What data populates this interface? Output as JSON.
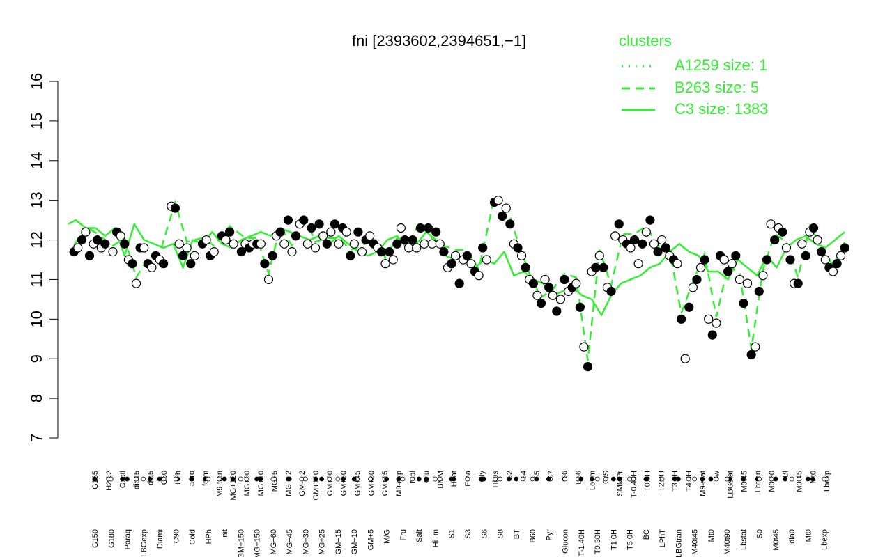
{
  "chart_data": {
    "type": "line",
    "title": "fni [2393602,2394651,−1]",
    "xlabel": "",
    "ylabel": "",
    "ylim": [
      7,
      16
    ],
    "yticks": [
      7,
      8,
      9,
      10,
      11,
      12,
      13,
      14,
      15,
      16
    ],
    "grid": false,
    "legend": {
      "title": "clusters",
      "placement": "top-right",
      "color": "#33ee33",
      "entries": [
        {
          "label": "A1259 size: 1",
          "style": "dotted"
        },
        {
          "label": "B263 size: 5",
          "style": "dashed"
        },
        {
          "label": "C3 size: 1383",
          "style": "solid"
        }
      ]
    },
    "x_tick_labels_lower": [
      "G150",
      "G180",
      "Paraq",
      "LBGexp",
      "Diami",
      "C90",
      "Cold",
      "HPh",
      "nit",
      "GM+150",
      "MG+150",
      "MG+60",
      "MG+45",
      "MG+30",
      "MG+25",
      "GM+15",
      "GM+10",
      "GM+5",
      "M/G",
      "Fru",
      "Salt",
      "HiTm",
      "S1",
      "S3",
      "S6",
      "S8",
      "BT",
      "B60",
      "Pyr",
      "Glucon",
      "T-1.40H",
      "T0.30H",
      "T1.0H",
      "T5.0H",
      "BC",
      "LPhT",
      "LBGtran",
      "M40t45",
      "Mt0",
      "M40t90",
      "Lbstat",
      "S0",
      "M0t45",
      "dia0",
      "Mt0",
      "Lbexp"
    ],
    "x_tick_labels_upper": [
      "G135",
      "H2O2",
      "Oxctl",
      "dia15",
      "dia5",
      "C30",
      "LPh",
      "aero",
      "ferm",
      "M9-tran",
      "MG+120",
      "MG+90",
      "MG+10",
      "MG+5",
      "MG-0.2",
      "GM-0.2",
      "GM+120",
      "GM+90",
      "GM+60",
      "GM+45",
      "GM+30",
      "GM+25",
      "M9-exp",
      "Mal",
      "Glu",
      "BMM",
      "Heat",
      "Etha",
      "Gly",
      "HiOs",
      "S2",
      "S4",
      "S5",
      "S7",
      "S6",
      "B36",
      "LoTm",
      "G/S",
      "SMMPr",
      "T-0.40H",
      "T0.0H",
      "T2.0H",
      "T3.0H",
      "T4.0H",
      "M9-stat",
      "Sw",
      "LBGstat",
      "M0t45",
      "Lbtran",
      "M0t90",
      "Bl",
      "M0t45",
      "Mt0",
      "Lbexp"
    ],
    "series": [
      {
        "name": "C3 size: 1383",
        "style": "solid",
        "x": [
          1,
          5,
          10,
          15,
          20,
          25,
          30,
          35,
          40,
          45,
          50,
          55,
          60,
          65,
          70,
          75,
          80,
          85,
          90,
          95,
          100,
          105,
          110,
          115,
          120,
          125,
          130,
          135,
          140,
          145,
          150,
          155,
          160,
          165,
          170,
          175,
          180,
          185,
          190,
          195,
          200,
          205,
          210,
          215,
          220,
          225,
          230,
          235,
          240,
          245,
          250,
          255,
          260,
          265,
          270,
          275,
          280,
          285,
          290,
          295,
          300,
          305,
          310,
          315,
          320,
          325,
          330,
          335,
          340,
          345,
          350,
          355,
          360,
          365,
          370,
          375,
          380,
          385,
          390,
          395,
          400
        ],
        "values": [
          12.4,
          12.5,
          12.3,
          12.3,
          12.1,
          12.3,
          11.6,
          12.4,
          12.0,
          11.9,
          11.8,
          11.9,
          11.3,
          12.0,
          11.9,
          12.2,
          11.9,
          11.8,
          12.0,
          12.1,
          12.2,
          12.1,
          12.3,
          12.2,
          12.1,
          12.0,
          12.1,
          11.9,
          12.1,
          11.9,
          11.7,
          11.6,
          11.7,
          12.0,
          12.1,
          11.8,
          11.9,
          12.2,
          12.0,
          11.6,
          11.5,
          11.6,
          11.3,
          11.5,
          11.4,
          11.7,
          11.1,
          11.2,
          11.0,
          10.9,
          10.6,
          10.7,
          10.8,
          10.6,
          10.5,
          10.1,
          10.6,
          10.9,
          11.0,
          11.1,
          11.3,
          11.4,
          11.7,
          11.9,
          11.7,
          11.6,
          11.2,
          11.2,
          11.0,
          11.5,
          11.3,
          11.1,
          11.6,
          11.3,
          11.8,
          12.0,
          12.1,
          11.9,
          11.8,
          12.0,
          12.2
        ]
      }
    ],
    "points_note": "",
    "points": [
      {
        "x": 4,
        "y": 11.7
      },
      {
        "x": 6,
        "y": 11.8
      },
      {
        "x": 8,
        "y": 12.0
      },
      {
        "x": 10,
        "y": 12.2
      },
      {
        "x": 12,
        "y": 11.6
      },
      {
        "x": 14,
        "y": 11.9
      },
      {
        "x": 16,
        "y": 12.0
      },
      {
        "x": 18,
        "y": 11.8
      },
      {
        "x": 20,
        "y": 11.9
      },
      {
        "x": 24,
        "y": 11.7
      },
      {
        "x": 26,
        "y": 12.2
      },
      {
        "x": 28,
        "y": 12.1
      },
      {
        "x": 30,
        "y": 11.9
      },
      {
        "x": 32,
        "y": 11.5
      },
      {
        "x": 34,
        "y": 11.4
      },
      {
        "x": 36,
        "y": 10.9
      },
      {
        "x": 38,
        "y": 11.8
      },
      {
        "x": 40,
        "y": 11.8
      },
      {
        "x": 42,
        "y": 11.4
      },
      {
        "x": 44,
        "y": 11.3
      },
      {
        "x": 46,
        "y": 11.6
      },
      {
        "x": 48,
        "y": 11.5
      },
      {
        "x": 50,
        "y": 11.4
      },
      {
        "x": 54,
        "y": 12.85
      },
      {
        "x": 56,
        "y": 12.8
      },
      {
        "x": 58,
        "y": 11.9
      },
      {
        "x": 60,
        "y": 11.6
      },
      {
        "x": 62,
        "y": 11.8
      },
      {
        "x": 64,
        "y": 11.4
      },
      {
        "x": 66,
        "y": 11.6
      },
      {
        "x": 70,
        "y": 11.9
      },
      {
        "x": 72,
        "y": 12.0
      },
      {
        "x": 74,
        "y": 11.6
      },
      {
        "x": 76,
        "y": 11.7
      },
      {
        "x": 80,
        "y": 12.1
      },
      {
        "x": 82,
        "y": 12.0
      },
      {
        "x": 84,
        "y": 12.2
      },
      {
        "x": 86,
        "y": 11.9
      },
      {
        "x": 90,
        "y": 11.7
      },
      {
        "x": 92,
        "y": 11.9
      },
      {
        "x": 94,
        "y": 11.8
      },
      {
        "x": 96,
        "y": 11.9
      },
      {
        "x": 98,
        "y": 11.9
      },
      {
        "x": 100,
        "y": 11.9
      },
      {
        "x": 102,
        "y": 11.4
      },
      {
        "x": 104,
        "y": 11.0
      },
      {
        "x": 106,
        "y": 11.6
      },
      {
        "x": 108,
        "y": 12.1
      },
      {
        "x": 110,
        "y": 12.2
      },
      {
        "x": 112,
        "y": 11.9
      },
      {
        "x": 114,
        "y": 12.5
      },
      {
        "x": 116,
        "y": 11.7
      },
      {
        "x": 118,
        "y": 12.1
      },
      {
        "x": 120,
        "y": 12.4
      },
      {
        "x": 122,
        "y": 12.5
      },
      {
        "x": 124,
        "y": 11.9
      },
      {
        "x": 126,
        "y": 12.3
      },
      {
        "x": 128,
        "y": 11.8
      },
      {
        "x": 130,
        "y": 12.4
      },
      {
        "x": 132,
        "y": 12.1
      },
      {
        "x": 134,
        "y": 11.9
      },
      {
        "x": 136,
        "y": 12.2
      },
      {
        "x": 138,
        "y": 12.4
      },
      {
        "x": 140,
        "y": 11.9
      },
      {
        "x": 142,
        "y": 12.3
      },
      {
        "x": 144,
        "y": 12.2
      },
      {
        "x": 146,
        "y": 11.6
      },
      {
        "x": 148,
        "y": 11.9
      },
      {
        "x": 150,
        "y": 12.2
      },
      {
        "x": 152,
        "y": 11.7
      },
      {
        "x": 154,
        "y": 12.0
      },
      {
        "x": 156,
        "y": 12.1
      },
      {
        "x": 158,
        "y": 11.9
      },
      {
        "x": 160,
        "y": 11.8
      },
      {
        "x": 162,
        "y": 11.7
      },
      {
        "x": 164,
        "y": 11.4
      },
      {
        "x": 166,
        "y": 11.7
      },
      {
        "x": 168,
        "y": 11.5
      },
      {
        "x": 170,
        "y": 11.9
      },
      {
        "x": 172,
        "y": 12.3
      },
      {
        "x": 174,
        "y": 12.0
      },
      {
        "x": 176,
        "y": 11.8
      },
      {
        "x": 178,
        "y": 12.0
      },
      {
        "x": 180,
        "y": 11.8
      },
      {
        "x": 182,
        "y": 12.3
      },
      {
        "x": 184,
        "y": 11.9
      },
      {
        "x": 186,
        "y": 12.3
      },
      {
        "x": 188,
        "y": 11.9
      },
      {
        "x": 190,
        "y": 12.2
      },
      {
        "x": 192,
        "y": 11.9
      },
      {
        "x": 194,
        "y": 11.7
      },
      {
        "x": 196,
        "y": 11.3
      },
      {
        "x": 198,
        "y": 11.4
      },
      {
        "x": 200,
        "y": 11.6
      },
      {
        "x": 202,
        "y": 10.9
      },
      {
        "x": 204,
        "y": 11.5
      },
      {
        "x": 206,
        "y": 11.6
      },
      {
        "x": 208,
        "y": 11.4
      },
      {
        "x": 210,
        "y": 11.2
      },
      {
        "x": 212,
        "y": 11.1
      },
      {
        "x": 214,
        "y": 11.8
      },
      {
        "x": 216,
        "y": 11.5
      },
      {
        "x": 220,
        "y": 12.95
      },
      {
        "x": 222,
        "y": 13.0
      },
      {
        "x": 224,
        "y": 12.6
      },
      {
        "x": 226,
        "y": 12.8
      },
      {
        "x": 228,
        "y": 12.4
      },
      {
        "x": 230,
        "y": 11.9
      },
      {
        "x": 232,
        "y": 11.8
      },
      {
        "x": 234,
        "y": 11.6
      },
      {
        "x": 236,
        "y": 11.3
      },
      {
        "x": 238,
        "y": 11.0
      },
      {
        "x": 240,
        "y": 10.9
      },
      {
        "x": 242,
        "y": 10.6
      },
      {
        "x": 244,
        "y": 10.4
      },
      {
        "x": 246,
        "y": 11.0
      },
      {
        "x": 248,
        "y": 10.8
      },
      {
        "x": 250,
        "y": 10.6
      },
      {
        "x": 252,
        "y": 10.2
      },
      {
        "x": 254,
        "y": 10.5
      },
      {
        "x": 256,
        "y": 11.0
      },
      {
        "x": 258,
        "y": 10.7
      },
      {
        "x": 260,
        "y": 10.8
      },
      {
        "x": 262,
        "y": 10.9
      },
      {
        "x": 264,
        "y": 10.3
      },
      {
        "x": 266,
        "y": 9.3
      },
      {
        "x": 268,
        "y": 8.8
      },
      {
        "x": 270,
        "y": 11.2
      },
      {
        "x": 272,
        "y": 11.3
      },
      {
        "x": 274,
        "y": 11.6
      },
      {
        "x": 276,
        "y": 11.3
      },
      {
        "x": 278,
        "y": 10.8
      },
      {
        "x": 280,
        "y": 10.7
      },
      {
        "x": 282,
        "y": 12.1
      },
      {
        "x": 284,
        "y": 12.4
      },
      {
        "x": 286,
        "y": 12.0
      },
      {
        "x": 288,
        "y": 11.9
      },
      {
        "x": 290,
        "y": 11.8
      },
      {
        "x": 292,
        "y": 12.0
      },
      {
        "x": 294,
        "y": 11.4
      },
      {
        "x": 296,
        "y": 11.9
      },
      {
        "x": 298,
        "y": 12.2
      },
      {
        "x": 300,
        "y": 12.5
      },
      {
        "x": 302,
        "y": 11.9
      },
      {
        "x": 304,
        "y": 11.7
      },
      {
        "x": 306,
        "y": 12.0
      },
      {
        "x": 308,
        "y": 11.8
      },
      {
        "x": 310,
        "y": 11.6
      },
      {
        "x": 312,
        "y": 11.5
      },
      {
        "x": 314,
        "y": 11.4
      },
      {
        "x": 316,
        "y": 10.0
      },
      {
        "x": 318,
        "y": 9.0
      },
      {
        "x": 320,
        "y": 10.3
      },
      {
        "x": 322,
        "y": 10.8
      },
      {
        "x": 324,
        "y": 11.0
      },
      {
        "x": 326,
        "y": 11.3
      },
      {
        "x": 328,
        "y": 11.5
      },
      {
        "x": 330,
        "y": 10.0
      },
      {
        "x": 332,
        "y": 9.6
      },
      {
        "x": 334,
        "y": 9.9
      },
      {
        "x": 336,
        "y": 11.6
      },
      {
        "x": 338,
        "y": 11.5
      },
      {
        "x": 340,
        "y": 11.2
      },
      {
        "x": 342,
        "y": 11.4
      },
      {
        "x": 344,
        "y": 11.6
      },
      {
        "x": 346,
        "y": 11.0
      },
      {
        "x": 348,
        "y": 10.4
      },
      {
        "x": 350,
        "y": 10.9
      },
      {
        "x": 352,
        "y": 9.1
      },
      {
        "x": 354,
        "y": 9.3
      },
      {
        "x": 356,
        "y": 10.7
      },
      {
        "x": 358,
        "y": 11.1
      },
      {
        "x": 360,
        "y": 11.5
      },
      {
        "x": 362,
        "y": 12.4
      },
      {
        "x": 364,
        "y": 12.0
      },
      {
        "x": 366,
        "y": 12.3
      },
      {
        "x": 368,
        "y": 12.2
      },
      {
        "x": 370,
        "y": 11.8
      },
      {
        "x": 372,
        "y": 11.5
      },
      {
        "x": 374,
        "y": 10.9
      },
      {
        "x": 376,
        "y": 10.9
      },
      {
        "x": 378,
        "y": 11.9
      },
      {
        "x": 380,
        "y": 11.6
      },
      {
        "x": 382,
        "y": 12.2
      },
      {
        "x": 384,
        "y": 12.3
      },
      {
        "x": 386,
        "y": 12.0
      },
      {
        "x": 388,
        "y": 11.7
      },
      {
        "x": 390,
        "y": 11.5
      },
      {
        "x": 392,
        "y": 11.3
      },
      {
        "x": 394,
        "y": 11.2
      },
      {
        "x": 396,
        "y": 11.4
      },
      {
        "x": 398,
        "y": 11.6
      },
      {
        "x": 400,
        "y": 11.8
      }
    ]
  }
}
